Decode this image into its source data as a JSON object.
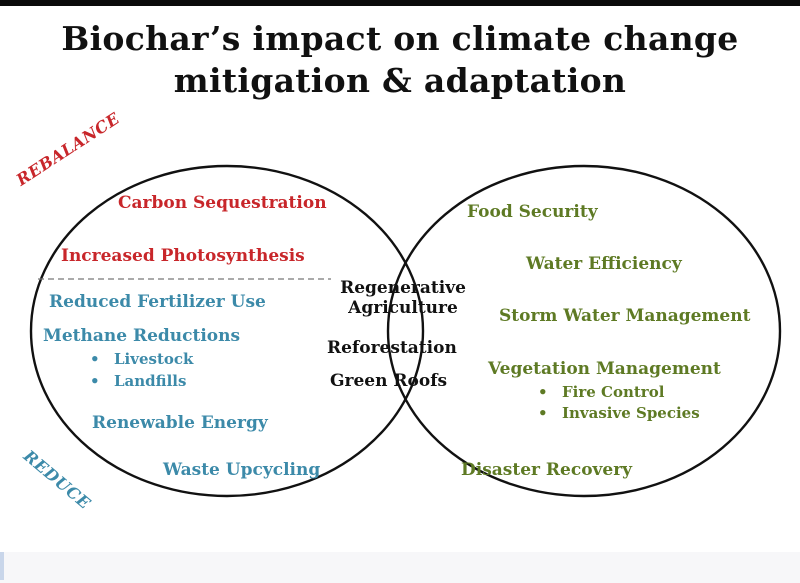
{
  "title": {
    "line1": "Biochar’s impact on climate change",
    "line2": "mitigation & adaptation"
  },
  "zones": {
    "rebalance": "REBALANCE",
    "reduce": "REDUCE"
  },
  "left_circle": {
    "rebalance_items": [
      "Carbon Sequestration",
      "Increased Photosynthesis"
    ],
    "reduce_items": {
      "fertilizer": "Reduced Fertilizer Use",
      "methane": "Methane Reductions",
      "methane_sub": [
        "Livestock",
        "Landfills"
      ],
      "energy": "Renewable Energy",
      "waste": "Waste Upcycling"
    }
  },
  "overlap": {
    "regen_line1": "Regenerative",
    "regen_line2": "Agriculture",
    "reforestation": "Reforestation",
    "green_roofs": "Green Roofs"
  },
  "right_circle": {
    "food": "Food Security",
    "water": "Water Efficiency",
    "storm": "Storm Water Management",
    "vegetation": "Vegetation Management",
    "vegetation_sub": [
      "Fire Control",
      "Invasive Species"
    ],
    "disaster": "Disaster Recovery"
  },
  "colors": {
    "rebalance": "#c8262a",
    "reduce": "#3c8aa9",
    "adaptation": "#5e7a24",
    "overlap": "#111111"
  }
}
